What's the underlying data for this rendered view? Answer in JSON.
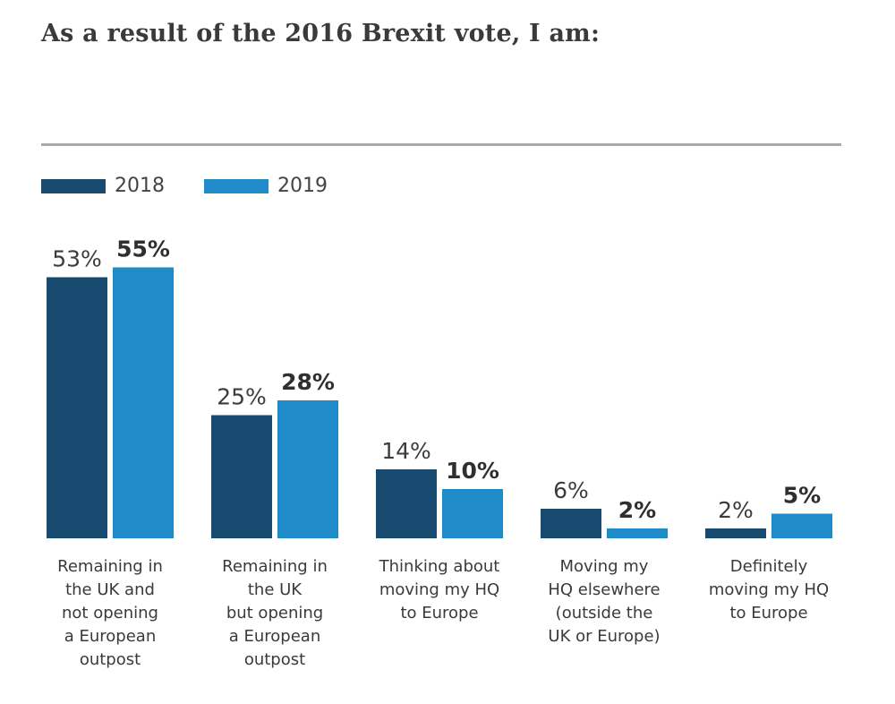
{
  "title": "As a result of the 2016 Brexit vote, I am:",
  "colors": {
    "series_2018": "#174a6e",
    "series_2019": "#1f8bc9",
    "rule": "#a9a9a9",
    "text": "#3a3a3a"
  },
  "chart_data": {
    "type": "bar",
    "title": "As a result of the 2016 Brexit vote, I am:",
    "xlabel": "",
    "ylabel": "",
    "ylim": [
      0,
      55
    ],
    "grid": false,
    "legend_position": "top-left",
    "categories": [
      [
        "Remaining in",
        "the UK and",
        "not opening",
        "a European",
        "outpost"
      ],
      [
        "Remaining in",
        "the UK",
        "but opening",
        "a European",
        "outpost"
      ],
      [
        "Thinking about",
        "moving my HQ",
        "to Europe"
      ],
      [
        "Moving my",
        "HQ elsewhere",
        "(outside the",
        "UK or Europe)"
      ],
      [
        "Definitely",
        "moving my HQ",
        "to Europe"
      ]
    ],
    "series": [
      {
        "name": "2018",
        "values": [
          53,
          25,
          14,
          6,
          2
        ],
        "labels": [
          "53%",
          "25%",
          "14%",
          "6%",
          "2%"
        ]
      },
      {
        "name": "2019",
        "values": [
          55,
          28,
          10,
          2,
          5
        ],
        "labels": [
          "55%",
          "28%",
          "10%",
          "2%",
          "5%"
        ]
      }
    ]
  }
}
